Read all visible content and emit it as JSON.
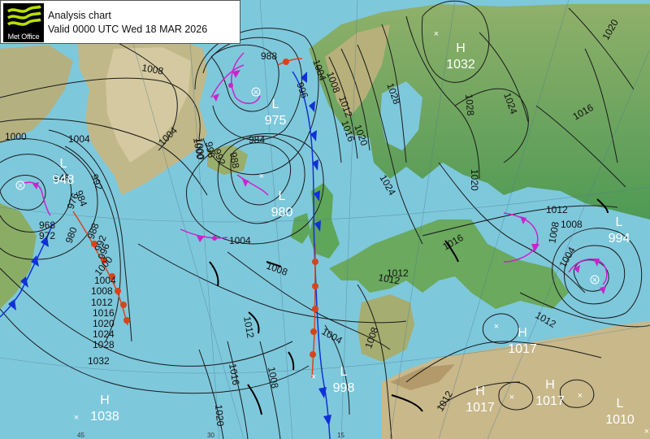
{
  "header": {
    "logo_text": "Met Office",
    "title": "Analysis chart",
    "valid": "Valid 0000 UTC Wed 18 MAR 2026"
  },
  "colors": {
    "sea": "#7ec8dc",
    "land_low": "#4fa05a",
    "land_mid": "#9bb56a",
    "land_high": "#c8b88a",
    "ice": "#e8ecf0",
    "warm_front": "#d8441a",
    "cold_front": "#1030d8",
    "occluded_front": "#cc22cc"
  },
  "pressure_centres": [
    {
      "type": "H",
      "value": "1032"
    },
    {
      "type": "L",
      "value": "975"
    },
    {
      "type": "L",
      "value": "948"
    },
    {
      "type": "L",
      "value": "980"
    },
    {
      "type": "L",
      "value": "994"
    },
    {
      "type": "H",
      "value": "1017"
    },
    {
      "type": "L",
      "value": "998"
    },
    {
      "type": "H",
      "value": "1017"
    },
    {
      "type": "H",
      "value": "1017"
    },
    {
      "type": "H",
      "value": "1038"
    },
    {
      "type": "L",
      "value": "1010"
    }
  ],
  "isobar_labels": [
    "1008",
    "1004",
    "1000",
    "988",
    "996",
    "1004",
    "1008",
    "1012",
    "1016",
    "1020",
    "1028",
    "1028",
    "1024",
    "1020",
    "1016",
    "1020",
    "1024",
    "1012",
    "1008",
    "1004",
    "1016",
    "992",
    "996",
    "988",
    "984",
    "1000",
    "948",
    "992",
    "984",
    "968",
    "972",
    "976",
    "980",
    "988",
    "992",
    "996",
    "1000",
    "1004",
    "1008",
    "1012",
    "1016",
    "1020",
    "1024",
    "1028",
    "1032",
    "1004",
    "1008",
    "1012",
    "1012",
    "1004",
    "1008",
    "1012",
    "1016",
    "1020",
    "1012",
    "1008",
    "1000",
    "1004",
    "1012",
    "1008"
  ],
  "graticule_labels": [
    "45",
    "30",
    "15"
  ]
}
